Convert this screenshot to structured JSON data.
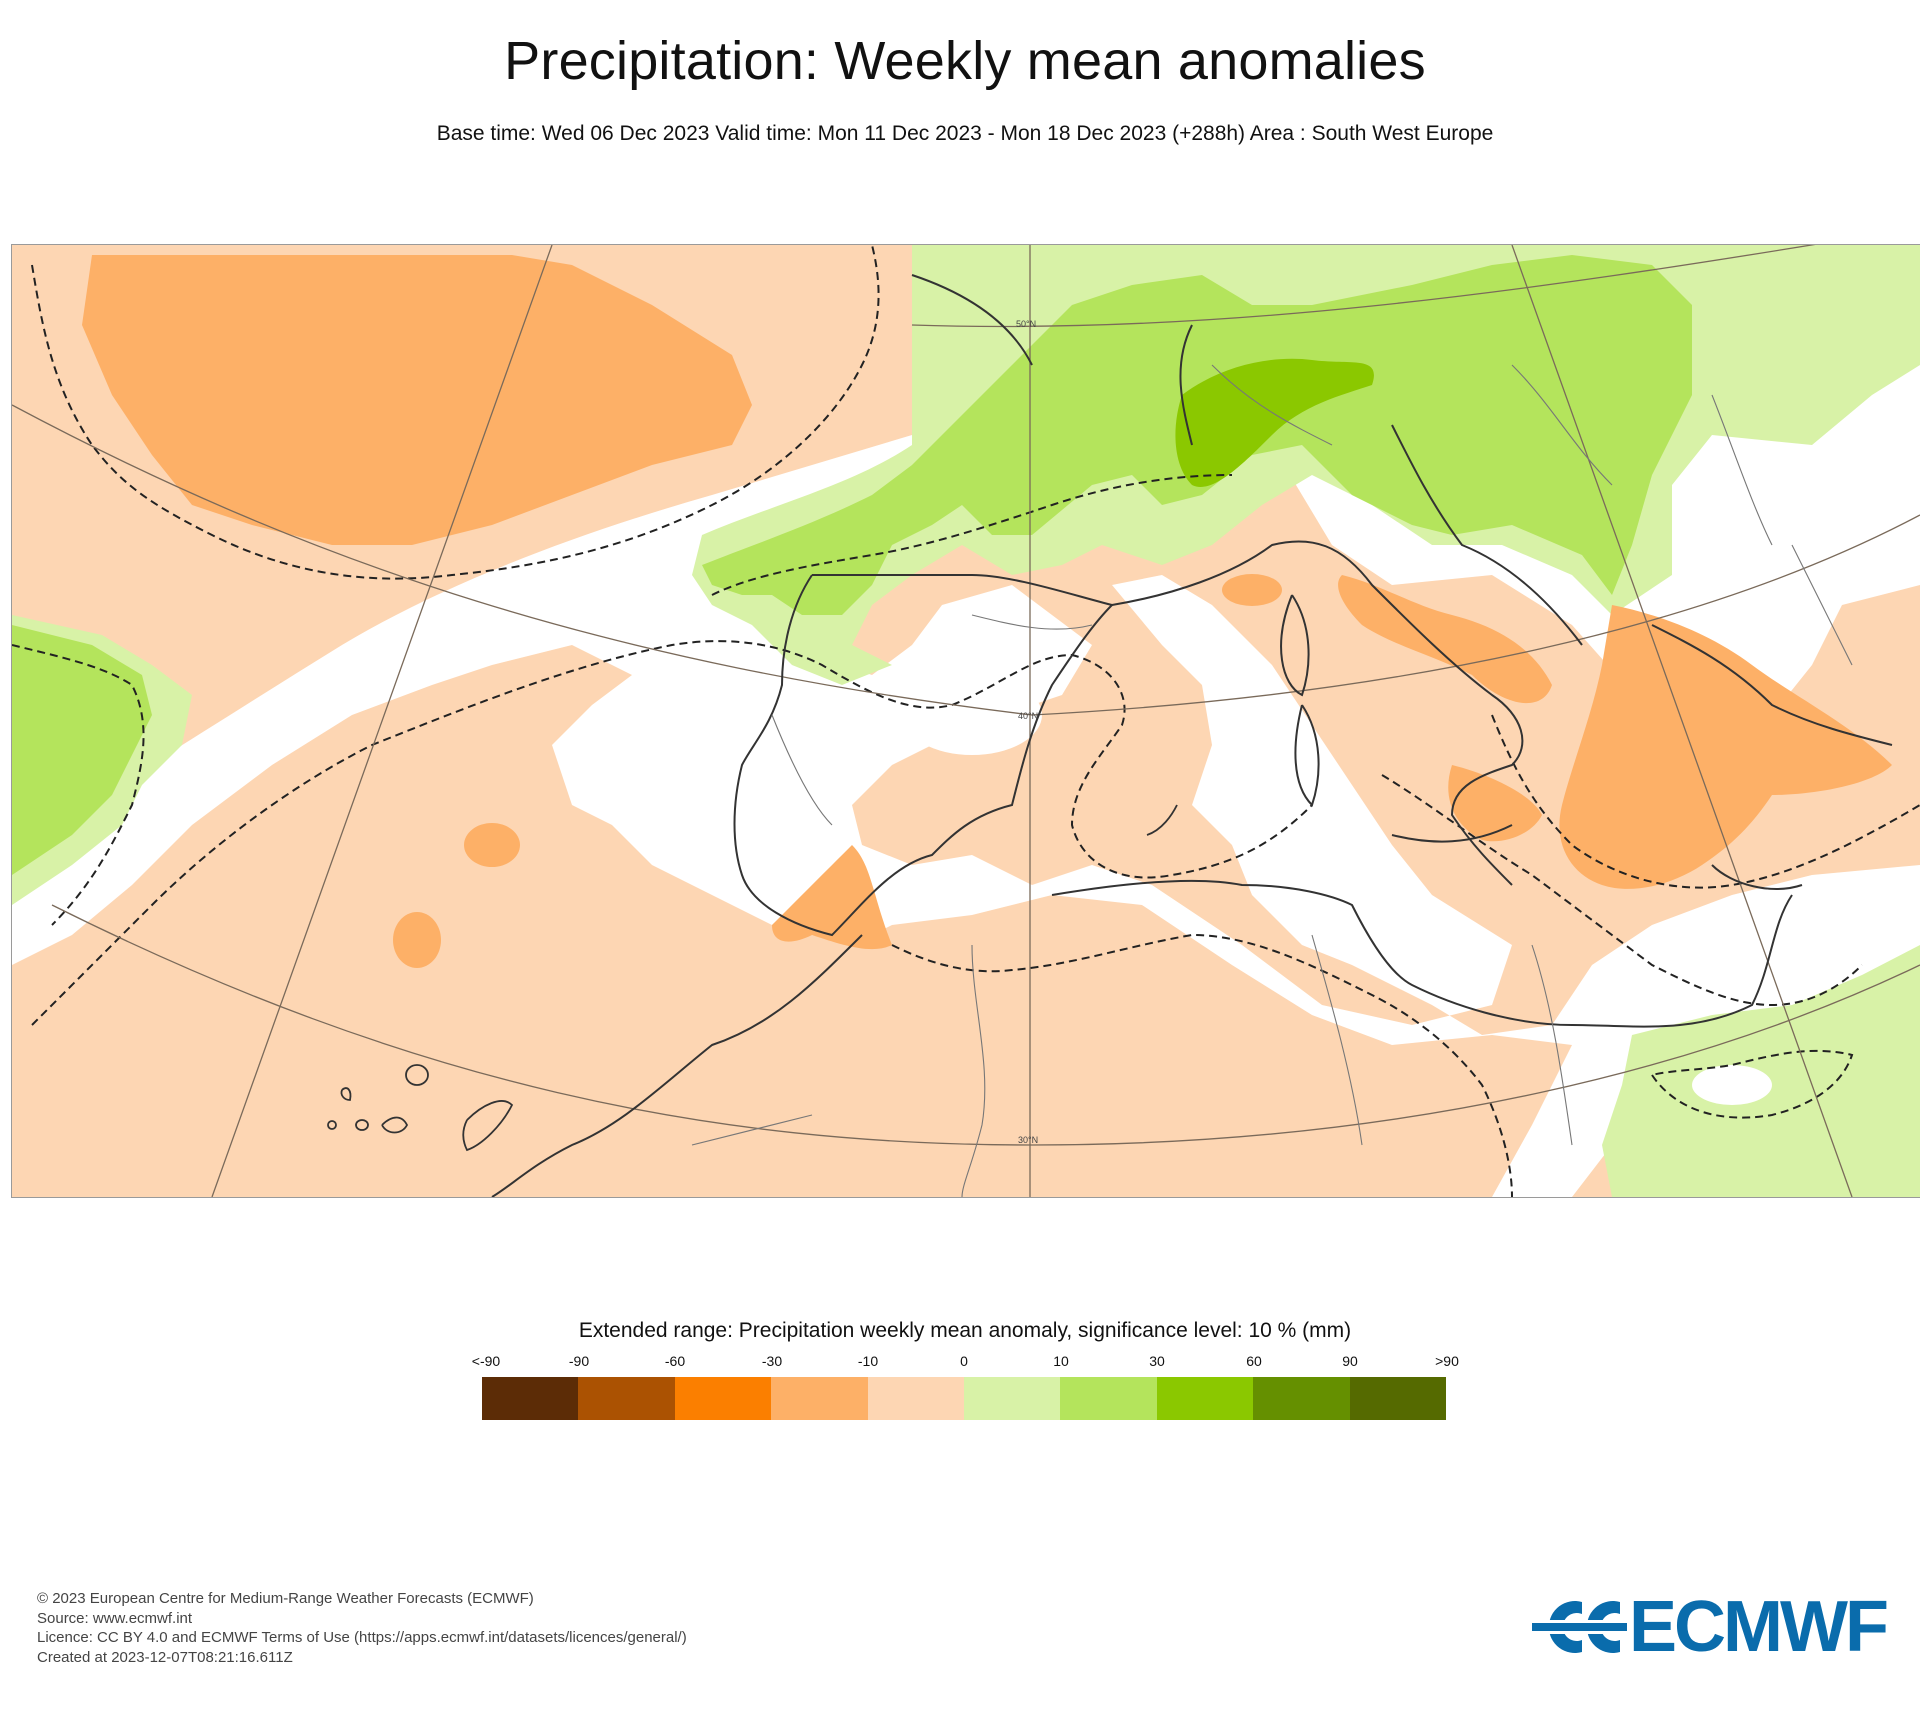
{
  "header": {
    "title": "Precipitation: Weekly mean anomalies",
    "subtitle": "Base time: Wed 06 Dec 2023 Valid time: Mon 11 Dec 2023 - Mon 18 Dec 2023 (+288h) Area : South West Europe"
  },
  "map": {
    "grid_labels": [
      "50°N",
      "40°N",
      "30°N"
    ]
  },
  "legend": {
    "title": "Extended range: Precipitation weekly mean anomaly, significance level: 10 % (mm)",
    "labels": [
      "<-90",
      "-90",
      "-60",
      "-30",
      "-10",
      "0",
      "10",
      "30",
      "60",
      "90",
      ">90"
    ],
    "colors": [
      "#5c2c06",
      "#ab5202",
      "#fb7f00",
      "#fdb067",
      "#fdd6b3",
      "#d8f2a7",
      "#b4e45c",
      "#8bc800",
      "#659000",
      "#556a00"
    ]
  },
  "footer": {
    "lines": [
      "© 2023 European Centre for Medium-Range Weather Forecasts (ECMWF)",
      "Source: www.ecmwf.int",
      "Licence: CC BY 4.0 and ECMWF Terms of Use (https://apps.ecmwf.int/datasets/licences/general/)",
      "Created at 2023-12-07T08:21:16.611Z"
    ]
  },
  "logo": {
    "text": "ECMWF",
    "color": "#0a6cac"
  }
}
